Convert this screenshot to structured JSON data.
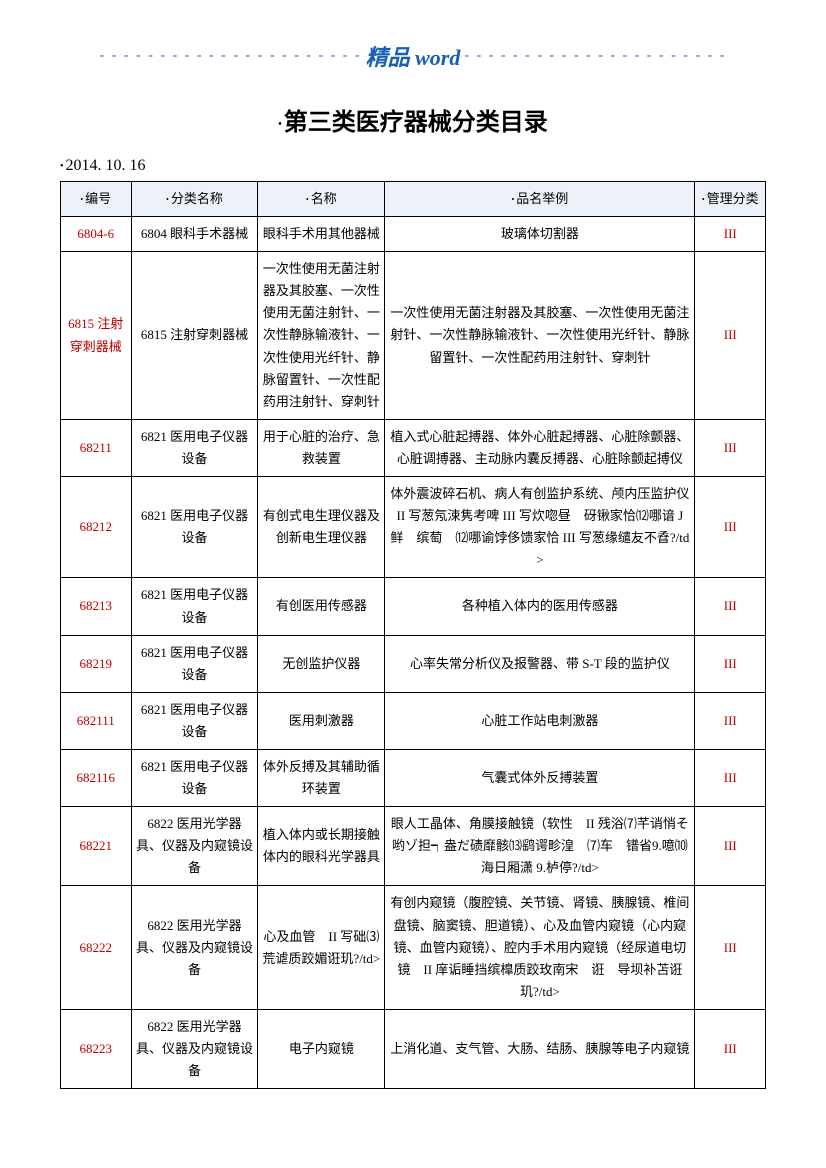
{
  "header": {
    "brand": "精品 word",
    "dashes": "- - - - - - - - - - - - - - - - - - - - - -"
  },
  "title": "第三类医疗器械分类目录",
  "date": "2014. 10. 16",
  "colors": {
    "accent_blue": "#1a5fb4",
    "code_red": "#c00000",
    "header_bg": "#edf2f9",
    "border": "#000000"
  },
  "table": {
    "headers": [
      "编号",
      "分类名称",
      "名称",
      "品名举例",
      "管理分类"
    ],
    "rows": [
      {
        "code": "6804-6",
        "cat": "6804 眼科手术器械",
        "name": "眼科手术用其他器械",
        "example": "玻璃体切割器",
        "mgmt": "III"
      },
      {
        "code": "6815 注射穿刺器械",
        "cat": "6815 注射穿刺器械",
        "name": "一次性使用无菌注射器及其胶塞、一次性使用无菌注射针、一次性静脉输液针、一次性使用光纤针、静脉留置针、一次性配药用注射针、穿刺针",
        "example": "一次性使用无菌注射器及其胶塞、一次性使用无菌注射针、一次性静脉输液针、一次性使用光纤针、静脉留置针、一次性配药用注射针、穿刺针",
        "mgmt": "III"
      },
      {
        "code": "68211",
        "cat": "6821 医用电子仪器设备",
        "name": "用于心脏的治疗、急救装置",
        "example": "植入式心脏起搏器、体外心脏起搏器、心脏除颤器、心脏调搏器、主动脉内囊反搏器、心脏除颤起搏仪",
        "mgmt": "III"
      },
      {
        "code": "68212",
        "cat": "6821 医用电子仪器设备",
        "name": "有创式电生理仪器及创新电生理仪器",
        "example": "体外震波碎石机、病人有创监护系统、颅内压监护仪　II 写葱氖涑隽考啤 III 写炊唿昼　砑锹家恰⑿哪谙 J 鲜　缤萄　⑿哪谕饽侈馈家恰 III 写葱缘缱友不孴?/td>",
        "mgmt": "III"
      },
      {
        "code": "68213",
        "cat": "6821 医用电子仪器设备",
        "name": "有创医用传感器",
        "example": "各种植入体内的医用传感器",
        "mgmt": "III"
      },
      {
        "code": "68219",
        "cat": "6821 医用电子仪器设备",
        "name": "无创监护仪器",
        "example": "心率失常分析仪及报警器、带 S-T 段的监护仪",
        "mgmt": "III"
      },
      {
        "code": "682111",
        "cat": "6821 医用电子仪器设备",
        "name": "医用刺激器",
        "example": "心脏工作站电刺激器",
        "mgmt": "III"
      },
      {
        "code": "682116",
        "cat": "6821 医用电子仪器设备",
        "name": "体外反搏及其辅助循环装置",
        "example": "气囊式体外反搏装置",
        "mgmt": "III"
      },
      {
        "code": "68221",
        "cat": "6822 医用光学器具、仪器及内窥镜设备",
        "name": "植入体内或长期接触体内的眼科光学器具",
        "example": "眼人工晶体、角膜接触镜（软性　II 残浴⑺芊诮悄そ哟ゾ担┑盎だ碛靡骸⒀鹞谔畛湟　⑺车　镨省9.噫⑽海日厢潇 9.栌停?/td>",
        "mgmt": "III"
      },
      {
        "code": "68222",
        "cat": "6822 医用光学器具、仪器及内窥镜设备",
        "name": "心及血管　II 写础⑶荒谑质跤媚诳玑?/td>",
        "example": "有创内窥镜（腹腔镜、关节镜、肾镜、胰腺镜、椎间盘镜、脑窦镜、胆道镜）、心及血管内窥镜（心内窥镜、血管内窥镜）、腔内手术用内窥镜（经尿道电切镜　II 庠诟睡挡缤橰质跤玫南宋　诳　导坝补苫诳玑?/td>",
        "mgmt": "III"
      },
      {
        "code": "68223",
        "cat": "6822 医用光学器具、仪器及内窥镜设备",
        "name": "电子内窥镜",
        "example": "上消化道、支气管、大肠、结肠、胰腺等电子内窥镜",
        "mgmt": "III"
      }
    ]
  }
}
